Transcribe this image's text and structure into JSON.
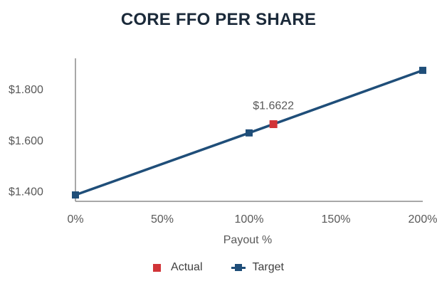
{
  "chart_data": {
    "type": "line",
    "title": "CORE FFO PER SHARE",
    "xlabel": "Payout %",
    "ylabel": "",
    "xlim": [
      0,
      200
    ],
    "ylim": [
      1.36,
      1.92
    ],
    "x_ticks": [
      0,
      50,
      100,
      150,
      200
    ],
    "x_tick_labels": [
      "0%",
      "50%",
      "100%",
      "150%",
      "200%"
    ],
    "y_ticks": [
      1.4,
      1.6,
      1.8
    ],
    "y_tick_labels": [
      "$1.400",
      "$1.600",
      "$1.800"
    ],
    "grid": false,
    "legend_position": "bottom",
    "series": [
      {
        "name": "Target",
        "type": "line",
        "marker": "square",
        "color": "#1f4e79",
        "points": [
          {
            "x": 0,
            "y": 1.385
          },
          {
            "x": 100,
            "y": 1.628
          },
          {
            "x": 200,
            "y": 1.873
          }
        ]
      },
      {
        "name": "Actual",
        "type": "scatter",
        "marker": "square",
        "color": "#d13438",
        "points": [
          {
            "x": 114,
            "y": 1.6622
          }
        ]
      }
    ],
    "annotations": [
      {
        "text": "$1.6622",
        "x": 114,
        "y": 1.6622
      }
    ]
  }
}
